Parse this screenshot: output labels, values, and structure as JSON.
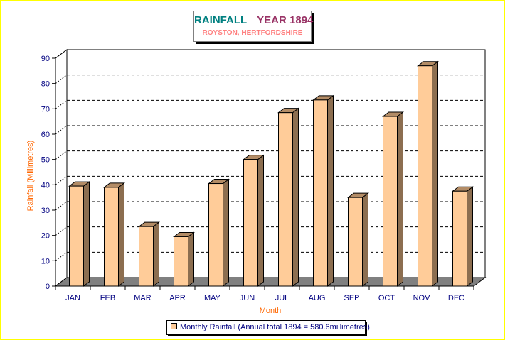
{
  "chart_data": {
    "type": "bar",
    "title_part1": "RAINFALL",
    "title_part2": "YEAR 1894",
    "subtitle": "ROYSTON, HERTFORDSHIRE",
    "xlabel": "Month",
    "ylabel": "Rainfall (Millimetres)",
    "categories": [
      "JAN",
      "FEB",
      "MAR",
      "APR",
      "MAY",
      "JUN",
      "JUL",
      "AUG",
      "SEP",
      "OCT",
      "NOV",
      "DEC"
    ],
    "series": [
      {
        "name": "Monthly Rainfall (Annual total 1894 = 580.6millimetres)",
        "values": [
          39.5,
          39,
          23.5,
          19.5,
          40.5,
          50,
          68.5,
          73.5,
          35,
          67,
          87,
          37.5
        ]
      }
    ],
    "ylim": [
      0,
      90
    ],
    "yticks": [
      0,
      10,
      20,
      30,
      40,
      50,
      60,
      70,
      80,
      90
    ],
    "grid": true,
    "legend_position": "bottom",
    "colors": {
      "bar_front": "#ffcc99",
      "bar_side": "#8c6e50",
      "bar_top": "#b38c66",
      "floor": "#808080",
      "axis_text": "#000080",
      "axis_title": "#ff6600",
      "border": "#ffff00"
    }
  }
}
